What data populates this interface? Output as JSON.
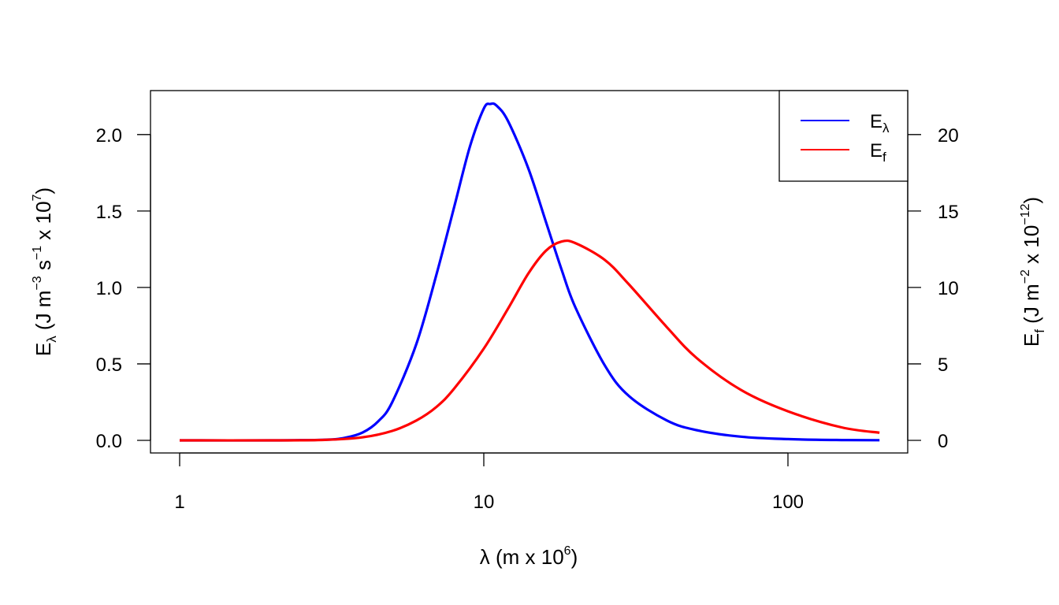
{
  "chart_data": {
    "type": "line",
    "x_axis": {
      "label": "λ (m x 10",
      "label_sup": "6",
      "label_end": ")",
      "scale": "log",
      "range": [
        1,
        200
      ],
      "ticks": [
        1,
        10,
        100
      ],
      "tick_labels": [
        "1",
        "10",
        "100"
      ]
    },
    "y_left": {
      "label_main": "E",
      "label_sub": "λ",
      "label_unit": " (J m",
      "sup1": "−3",
      "mid": " s",
      "sup2": "−1",
      "mid2": " x 10",
      "sup3": "7",
      "end": ")",
      "range": [
        0,
        2.2
      ],
      "ticks": [
        0,
        0.5,
        1.0,
        1.5,
        2.0
      ],
      "tick_labels": [
        "0.0",
        "0.5",
        "1.0",
        "1.5",
        "2.0"
      ]
    },
    "y_right": {
      "label_main": "E",
      "label_sub": "f",
      "label_unit": " (J m",
      "sup1": "−2",
      "mid": " x 10",
      "sup2": "−12",
      "end": ")",
      "range": [
        0,
        22
      ],
      "ticks": [
        0,
        5,
        10,
        15,
        20
      ],
      "tick_labels": [
        "0",
        "5",
        "10",
        "15",
        "20"
      ]
    },
    "legend": {
      "placement": "top-right",
      "entries": [
        {
          "main": "E",
          "sub": "λ",
          "color": "#0000ff"
        },
        {
          "main": "E",
          "sub": "f",
          "color": "#ff0000"
        }
      ]
    },
    "series": [
      {
        "axis": "left",
        "color": "#0000ff",
        "x": [
          1,
          2,
          3,
          3.5,
          4,
          4.5,
          5,
          6,
          7,
          8,
          9,
          10,
          10.5,
          11,
          12,
          14,
          16,
          18,
          20,
          25,
          30,
          40,
          50,
          70,
          100,
          150,
          200
        ],
        "y": [
          0,
          0,
          0.004,
          0.017,
          0.052,
          0.125,
          0.25,
          0.63,
          1.09,
          1.53,
          1.92,
          2.17,
          2.2,
          2.19,
          2.09,
          1.78,
          1.43,
          1.12,
          0.87,
          0.49,
          0.29,
          0.13,
          0.067,
          0.024,
          0.008,
          0.002,
          0.001
        ]
      },
      {
        "axis": "right",
        "color": "#ff0000",
        "x": [
          1,
          2,
          3,
          4,
          5,
          6,
          7,
          8,
          10,
          12,
          14,
          16,
          18,
          20,
          25,
          30,
          40,
          50,
          70,
          100,
          150,
          200
        ],
        "y": [
          0,
          0,
          0.03,
          0.2,
          0.62,
          1.3,
          2.2,
          3.4,
          6.0,
          8.6,
          10.9,
          12.4,
          13.0,
          12.9,
          11.8,
          10.2,
          7.4,
          5.4,
          3.3,
          1.9,
          0.85,
          0.5
        ]
      }
    ]
  }
}
